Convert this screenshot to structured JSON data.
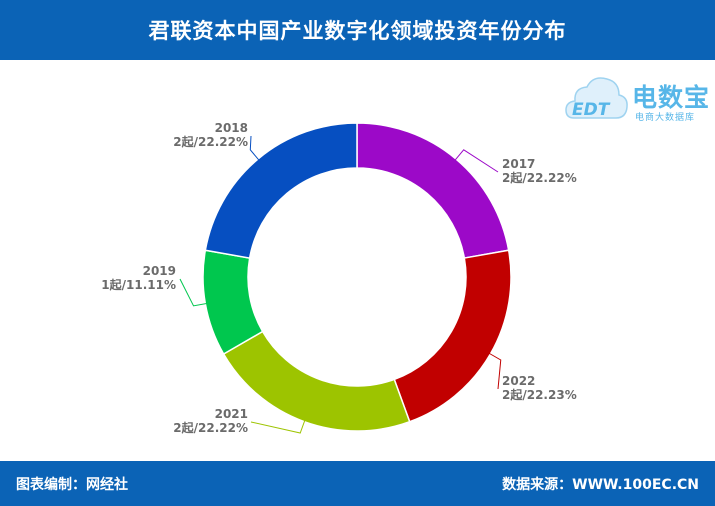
{
  "header": {
    "title": "君联资本中国产业数字化领域投资年份分布"
  },
  "logo": {
    "name": "电数宝",
    "subtitle": "电商大数据库",
    "mark": "EDT"
  },
  "footer": {
    "editor": "图表编制：网经社",
    "source": "数据来源：WWW.100EC.CN"
  },
  "chart_data": {
    "type": "pie",
    "style": "donut",
    "start": "top, clockwise",
    "slices": [
      {
        "label": "2017",
        "value": 2,
        "display": "2起/22.22%",
        "color": "#9c09c8"
      },
      {
        "label": "2022",
        "value": 2,
        "display": "2起/22.23%",
        "color": "#c10000"
      },
      {
        "label": "2021",
        "value": 2,
        "display": "2起/22.22%",
        "color": "#9dc400"
      },
      {
        "label": "2019",
        "value": 1,
        "display": "1起/11.11%",
        "color": "#00c74e"
      },
      {
        "label": "2018",
        "value": 2,
        "display": "2起/22.22%",
        "color": "#064fc1"
      }
    ]
  }
}
